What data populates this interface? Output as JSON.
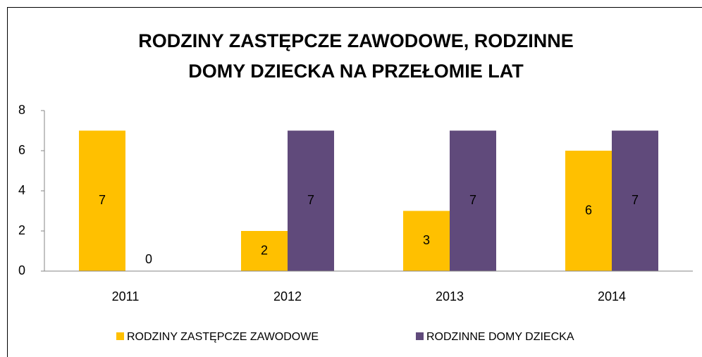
{
  "chart_data": {
    "type": "bar",
    "title": [
      "RODZINY ZASTĘPCZE ZAWODOWE, RODZINNE",
      "DOMY DZIECKA NA PRZEŁOMIE LAT"
    ],
    "categories": [
      "2011",
      "2012",
      "2013",
      "2014"
    ],
    "series": [
      {
        "name": "RODZINY ZASTĘPCZE ZAWODOWE",
        "color": "#ffc000",
        "values": [
          7,
          2,
          3,
          6
        ]
      },
      {
        "name": "RODZINNE DOMY DZIECKA",
        "color": "#604a7b",
        "values": [
          0,
          7,
          7,
          7
        ]
      }
    ],
    "ylim": [
      0,
      8
    ],
    "yticks": [
      0,
      2,
      4,
      6,
      8
    ],
    "grid": false,
    "legend": "bottom"
  }
}
